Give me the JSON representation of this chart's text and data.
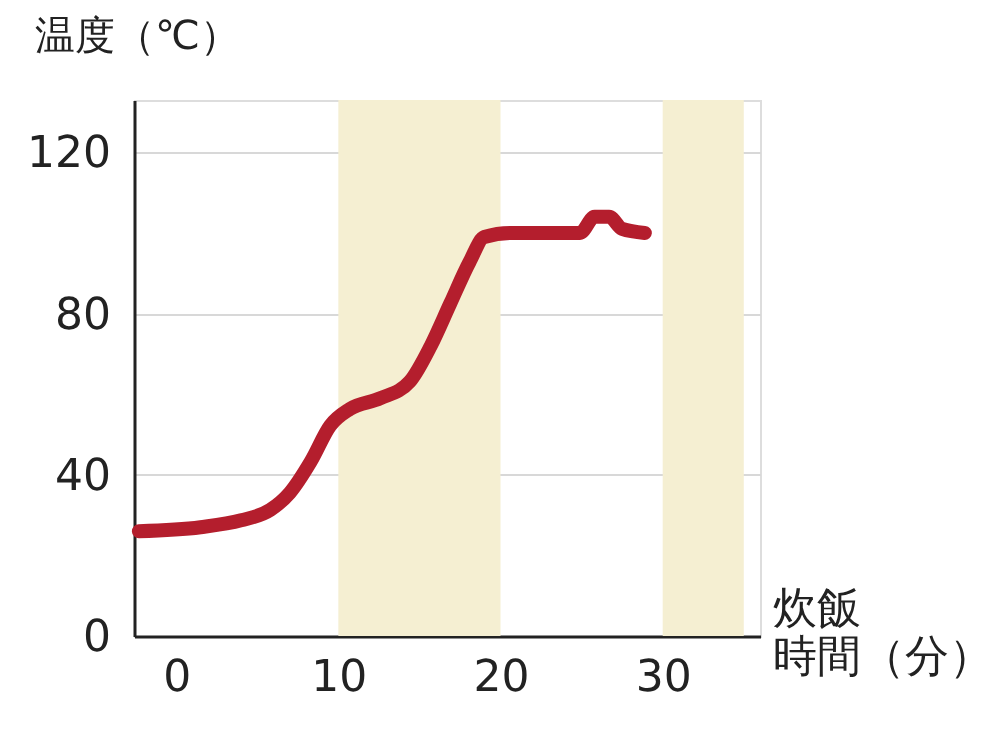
{
  "chart_data": {
    "type": "line",
    "xlabel": "炊飯時間（分）",
    "ylabel": "温度（℃）",
    "xlim": [
      -2.6,
      36
    ],
    "ylim": [
      0,
      133
    ],
    "xticks": [
      0,
      10,
      20,
      30
    ],
    "yticks": [
      0,
      40,
      80,
      120
    ],
    "grid": "y",
    "line_style": "solid",
    "bands": [
      {
        "axis": "x",
        "from": 10,
        "to": 20,
        "color": "#f5efd2"
      },
      {
        "axis": "x",
        "from": 30,
        "to": 35,
        "color": "#f5efd2"
      }
    ],
    "series": [
      {
        "color": "#b41e2d",
        "x": [
          -2.3,
          1.5,
          4.0,
          5.8,
          7.0,
          8.3,
          9.5,
          10.7,
          12.6,
          14.4,
          15.7,
          16.9,
          18.1,
          19.0,
          20.6,
          24.9,
          25.8,
          26.7,
          27.5,
          28.9
        ],
        "values": [
          26,
          27,
          28.7,
          31.3,
          35.5,
          43.3,
          52.2,
          56.3,
          59,
          63.1,
          72,
          82.5,
          92.9,
          99,
          100,
          100,
          104,
          104,
          101,
          100
        ]
      }
    ]
  }
}
